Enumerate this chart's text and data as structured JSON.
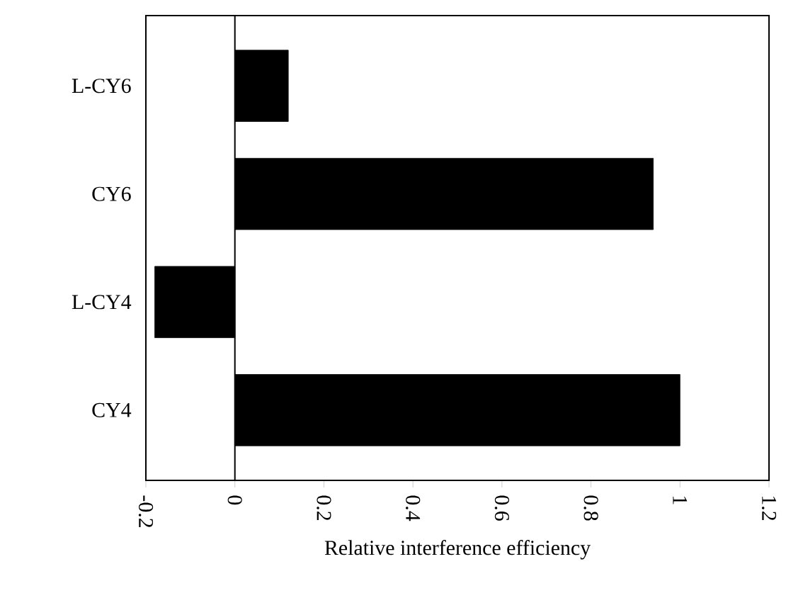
{
  "chart_data": {
    "type": "bar",
    "orientation": "horizontal",
    "xlabel": "Relative interference efficiency",
    "categories": [
      "L-CY6",
      "CY6",
      "L-CY4",
      "CY4"
    ],
    "values": [
      0.12,
      0.94,
      -0.18,
      1.0
    ],
    "color": "#000000",
    "xlim": [
      -0.2,
      1.2
    ],
    "xticks": [
      -0.2,
      0,
      0.2,
      0.4,
      0.6,
      0.8,
      1,
      1.2
    ],
    "ref_lines": [
      {
        "axis": "x",
        "value": 0,
        "color": "#000000"
      }
    ]
  }
}
